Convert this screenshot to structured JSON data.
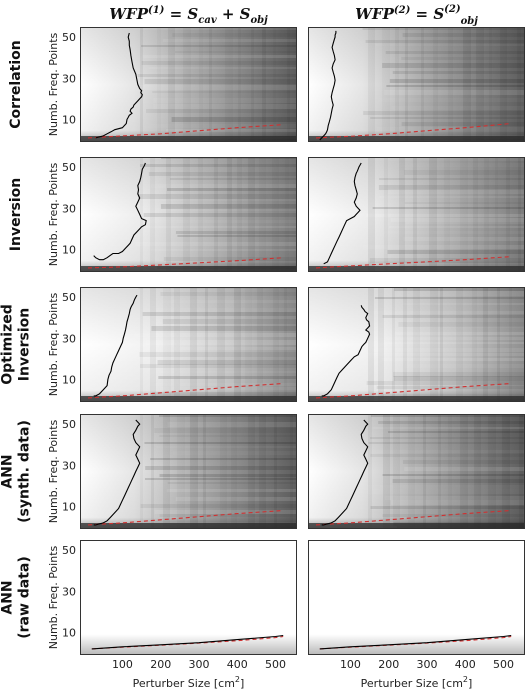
{
  "columns": [
    {
      "base": "WFP",
      "sup": "(1)",
      "rest": " = S",
      "sub1": "cav",
      "plus": " + S",
      "sub2": "obj"
    },
    {
      "base": "WFP",
      "sup": "(2)",
      "rest": " = S",
      "sup2": "(2)",
      "sub2": "obj"
    }
  ],
  "rows": [
    {
      "lines": [
        "Correlation"
      ]
    },
    {
      "lines": [
        "Inversion"
      ]
    },
    {
      "lines": [
        "Optimized",
        "Inversion"
      ]
    },
    {
      "lines": [
        "ANN",
        "(synth. data)"
      ]
    },
    {
      "lines": [
        "ANN",
        "(raw data)"
      ]
    }
  ],
  "chart_data": {
    "type": "heatmap",
    "ylabel": "Numb. Freq. Points",
    "xlabel": "Perturber Size [cm",
    "xlabel_sup": "2",
    "xlabel_end": "]",
    "xlim": [
      10,
      530
    ],
    "ylim": [
      0,
      52
    ],
    "xticks": [
      100,
      200,
      300,
      400,
      500
    ],
    "yticks": [
      10,
      30,
      50
    ],
    "black_line_color": "#000000",
    "red_line_color": "#d03030",
    "panels": [
      {
        "row": 0,
        "col": 0,
        "shading": "dark",
        "black_x": [
          30,
          40,
          50,
          60,
          70,
          80,
          100,
          110,
          112,
          115,
          118,
          125,
          120,
          122,
          128,
          130,
          135,
          140,
          145,
          150,
          152,
          148,
          150,
          145,
          140,
          138,
          135,
          128,
          125,
          122,
          120,
          118,
          118,
          115,
          118
        ],
        "black_y": [
          1,
          1.5,
          2,
          3,
          4,
          5,
          6,
          8,
          10,
          11,
          12,
          13,
          14,
          15,
          16,
          17,
          18,
          19,
          20,
          21,
          22,
          23,
          24,
          25,
          27,
          29,
          32,
          35,
          38,
          41,
          44,
          46,
          48,
          50,
          52
        ],
        "red_x": [
          10,
          100,
          200,
          300,
          400,
          520
        ],
        "red_y": [
          1,
          2,
          3,
          4.5,
          6,
          7.5
        ]
      },
      {
        "row": 0,
        "col": 1,
        "shading": "dark",
        "black_x": [
          20,
          25,
          30,
          35,
          38,
          40,
          42,
          45,
          48,
          50,
          52,
          55,
          52,
          50,
          52,
          55,
          58,
          60,
          58,
          55,
          52,
          55,
          60,
          58,
          55,
          52,
          55,
          58,
          60,
          60,
          62,
          62
        ],
        "black_y": [
          0,
          1,
          2,
          3,
          4,
          5,
          7,
          9,
          11,
          13,
          15,
          17,
          19,
          21,
          23,
          25,
          27,
          29,
          31,
          33,
          35,
          37,
          39,
          41,
          43,
          45,
          47,
          49,
          50,
          51,
          52,
          53
        ],
        "red_x": [
          10,
          100,
          200,
          300,
          400,
          520
        ],
        "red_y": [
          1,
          1.8,
          3,
          4.5,
          6,
          8
        ]
      },
      {
        "row": 1,
        "col": 0,
        "shading": "medium",
        "black_x": [
          25,
          30,
          40,
          50,
          60,
          75,
          90,
          100,
          110,
          120,
          125,
          130,
          140,
          150,
          160,
          162,
          150,
          145,
          140,
          135,
          140,
          145,
          140,
          142,
          140,
          145,
          148,
          150,
          152,
          155,
          158,
          160
        ],
        "black_y": [
          7,
          6,
          5,
          5,
          6,
          8,
          8,
          9,
          11,
          13,
          15,
          17,
          19,
          21,
          22,
          24,
          25,
          27,
          29,
          31,
          33,
          35,
          37,
          39,
          41,
          43,
          45,
          47,
          49,
          50,
          51,
          52
        ],
        "red_x": [
          10,
          100,
          200,
          300,
          400,
          520
        ],
        "red_y": [
          1,
          1.5,
          2.5,
          3.5,
          4.5,
          6
        ]
      },
      {
        "row": 1,
        "col": 1,
        "shading": "medium",
        "black_x": [
          30,
          40,
          45,
          50,
          55,
          60,
          65,
          70,
          75,
          80,
          85,
          90,
          100,
          110,
          115,
          120,
          125,
          120,
          115,
          110,
          115,
          118,
          115,
          112,
          110,
          112,
          115,
          118,
          120,
          122,
          125,
          128
        ],
        "black_y": [
          3,
          4,
          6,
          8,
          10,
          12,
          14,
          16,
          18,
          20,
          22,
          24,
          25,
          26,
          27,
          28,
          29,
          30,
          31,
          33,
          35,
          37,
          39,
          41,
          43,
          45,
          47,
          48,
          49,
          50,
          51,
          52
        ],
        "red_x": [
          10,
          100,
          200,
          300,
          400,
          520
        ],
        "red_y": [
          1,
          2,
          3,
          4,
          5,
          6.5
        ]
      },
      {
        "row": 2,
        "col": 0,
        "shading": "light",
        "black_x": [
          25,
          30,
          40,
          50,
          60,
          62,
          65,
          70,
          72,
          75,
          80,
          85,
          90,
          95,
          100,
          102,
          105,
          108,
          110,
          112,
          115,
          118,
          120,
          122,
          125,
          128,
          130,
          132,
          135,
          138
        ],
        "black_y": [
          2,
          2,
          3,
          5,
          7,
          10,
          12,
          14,
          16,
          18,
          20,
          22,
          24,
          26,
          28,
          30,
          32,
          34,
          36,
          38,
          40,
          42,
          44,
          45,
          46,
          47,
          48,
          49,
          50,
          51
        ],
        "red_x": [
          10,
          100,
          200,
          300,
          400,
          520
        ],
        "red_y": [
          1,
          2,
          3.5,
          5,
          6.5,
          8
        ]
      },
      {
        "row": 2,
        "col": 1,
        "shading": "light",
        "black_x": [
          25,
          30,
          40,
          50,
          55,
          60,
          65,
          70,
          80,
          90,
          100,
          110,
          120,
          125,
          130,
          135,
          140,
          145,
          150,
          148,
          140,
          145,
          150,
          148,
          142,
          140,
          145,
          138,
          135,
          130,
          128
        ],
        "black_y": [
          2,
          2,
          3,
          5,
          7,
          9,
          11,
          13,
          15,
          17,
          19,
          21,
          22,
          24,
          26,
          27,
          28,
          30,
          32,
          33,
          34,
          35,
          36,
          38,
          39,
          40,
          42,
          43,
          44,
          45,
          46
        ],
        "red_x": [
          10,
          100,
          200,
          300,
          400,
          520
        ],
        "red_y": [
          1,
          2,
          3.5,
          5,
          6.5,
          8
        ]
      },
      {
        "row": 3,
        "col": 0,
        "shading": "dark",
        "black_x": [
          25,
          30,
          40,
          50,
          60,
          70,
          80,
          90,
          95,
          100,
          105,
          110,
          115,
          120,
          125,
          130,
          135,
          140,
          145,
          140,
          135,
          140,
          145,
          135,
          130,
          128,
          135,
          140,
          145,
          140,
          135
        ],
        "black_y": [
          1,
          1,
          1.5,
          2,
          3,
          5,
          7,
          9,
          11,
          13,
          15,
          17,
          19,
          21,
          23,
          25,
          27,
          29,
          31,
          33,
          35,
          37,
          39,
          41,
          43,
          45,
          47,
          49,
          50,
          51,
          52
        ],
        "red_x": [
          10,
          100,
          200,
          300,
          400,
          520
        ],
        "red_y": [
          1,
          2,
          3.5,
          5,
          6.5,
          8
        ]
      },
      {
        "row": 3,
        "col": 1,
        "shading": "dark",
        "black_x": [
          25,
          30,
          40,
          50,
          60,
          70,
          80,
          90,
          95,
          100,
          105,
          110,
          115,
          120,
          125,
          130,
          135,
          140,
          145,
          140,
          135,
          140,
          145,
          135,
          130,
          128,
          135,
          140,
          145,
          140,
          135
        ],
        "black_y": [
          1,
          1,
          1.5,
          2,
          3,
          5,
          7,
          9,
          11,
          13,
          15,
          17,
          19,
          21,
          23,
          25,
          27,
          29,
          31,
          33,
          35,
          37,
          39,
          41,
          43,
          45,
          47,
          49,
          50,
          51,
          52
        ],
        "red_x": [
          10,
          100,
          200,
          300,
          400,
          520
        ],
        "red_y": [
          1,
          2,
          3.5,
          5,
          6.5,
          8
        ]
      },
      {
        "row": 4,
        "col": 0,
        "shading": "blank",
        "black_x": [
          20,
          100,
          200,
          300,
          400,
          500,
          520
        ],
        "black_y": [
          2,
          3,
          4,
          5,
          6.5,
          8,
          8.5
        ],
        "red_x": [
          20,
          100,
          200,
          300,
          400,
          500,
          520
        ],
        "red_y": [
          2,
          2.8,
          3.8,
          4.8,
          6,
          7.5,
          8
        ]
      },
      {
        "row": 4,
        "col": 1,
        "shading": "blank",
        "black_x": [
          20,
          100,
          200,
          300,
          400,
          500,
          520
        ],
        "black_y": [
          2,
          3,
          4,
          5,
          6.5,
          8,
          8.5
        ],
        "red_x": [
          20,
          100,
          200,
          300,
          400,
          500,
          520
        ],
        "red_y": [
          2,
          2.8,
          3.8,
          4.8,
          6,
          7.5,
          8
        ]
      }
    ]
  }
}
